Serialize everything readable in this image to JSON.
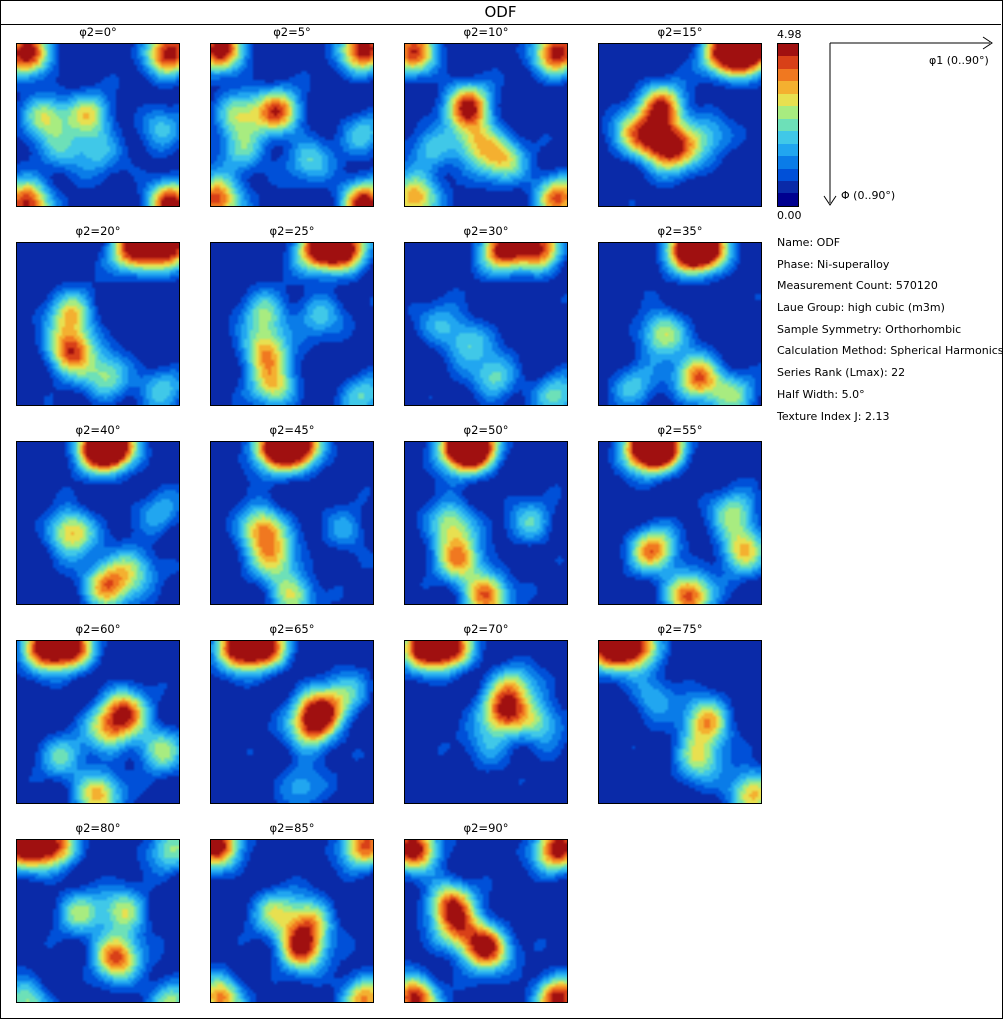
{
  "window": {
    "title": "ODF"
  },
  "colorbar": {
    "max_label": "4.98",
    "min_label": "0.00",
    "colors": [
      "#00008f",
      "#0a2aa8",
      "#0050d8",
      "#0a7ce8",
      "#21a6f0",
      "#40c8e8",
      "#6de0b8",
      "#a8ec80",
      "#e8e050",
      "#f4b030",
      "#f07820",
      "#d84018",
      "#a01010"
    ]
  },
  "axes": {
    "x_label": "φ1 (0..90°)",
    "y_label": "Φ (0..90°)"
  },
  "info": [
    {
      "key": "Name",
      "value": "ODF"
    },
    {
      "key": "Phase",
      "value": "Ni-superalloy"
    },
    {
      "key": "Measurement Count",
      "value": "570120"
    },
    {
      "key": "Laue Group",
      "value": "high cubic (m3m)"
    },
    {
      "key": "Sample Symmetry",
      "value": "Orthorhombic"
    },
    {
      "key": "Calculation Method",
      "value": "Spherical Harmonics"
    },
    {
      "key": "Series Rank (Lmax)",
      "value": "22"
    },
    {
      "key": "Half Width",
      "value": "5.0°"
    },
    {
      "key": "Texture Index J",
      "value": "2.13"
    }
  ],
  "info_lines": [
    "Name: ODF",
    "Phase: Ni-superalloy",
    "Measurement Count: 570120",
    "Laue Group: high cubic (m3m)",
    "Sample Symmetry: Orthorhombic",
    "Calculation Method: Spherical Harmonics",
    "Series Rank (Lmax): 22",
    "Half Width: 5.0°",
    "Texture Index J: 2.13"
  ],
  "chart_data": {
    "type": "heatmap",
    "title": "ODF",
    "xlabel": "φ1 (0..90°)",
    "ylabel": "Φ (0..90°)",
    "xlim": [
      0,
      90
    ],
    "ylim": [
      0,
      90
    ],
    "value_range": [
      0.0,
      4.98
    ],
    "sections": [
      {
        "label": "φ2=0°",
        "phi2": 0,
        "peaks": [
          [
            5,
            5,
            4.6
          ],
          [
            85,
            5,
            4.6
          ],
          [
            5,
            88,
            4.6
          ],
          [
            85,
            88,
            4.6
          ],
          [
            15,
            40,
            2.6
          ],
          [
            40,
            40,
            2.6
          ],
          [
            25,
            60,
            1.6
          ],
          [
            45,
            60,
            1.6
          ],
          [
            80,
            45,
            1.6
          ]
        ]
      },
      {
        "label": "φ2=5°",
        "phi2": 5,
        "peaks": [
          [
            5,
            3,
            4.6
          ],
          [
            85,
            3,
            4.6
          ],
          [
            3,
            86,
            4.3
          ],
          [
            85,
            88,
            4.6
          ],
          [
            37,
            38,
            3.8
          ],
          [
            15,
            38,
            2.4
          ],
          [
            18,
            60,
            2.0
          ],
          [
            55,
            65,
            1.8
          ],
          [
            85,
            50,
            1.6
          ]
        ]
      },
      {
        "label": "φ2=10°",
        "phi2": 10,
        "peaks": [
          [
            5,
            5,
            4.0
          ],
          [
            85,
            5,
            4.6
          ],
          [
            5,
            85,
            3.6
          ],
          [
            85,
            85,
            3.8
          ],
          [
            35,
            35,
            4.2
          ],
          [
            40,
            55,
            2.8
          ],
          [
            55,
            65,
            2.6
          ],
          [
            15,
            60,
            1.7
          ]
        ]
      },
      {
        "label": "φ2=15°",
        "phi2": 15,
        "peaks": [
          [
            70,
            5,
            4.6
          ],
          [
            85,
            5,
            4.6
          ],
          [
            35,
            35,
            3.8
          ],
          [
            35,
            55,
            3.8
          ],
          [
            20,
            50,
            2.8
          ],
          [
            45,
            60,
            2.2
          ],
          [
            60,
            50,
            1.6
          ]
        ]
      },
      {
        "label": "φ2=20°",
        "phi2": 20,
        "peaks": [
          [
            65,
            3,
            4.6
          ],
          [
            85,
            3,
            4.6
          ],
          [
            30,
            40,
            2.8
          ],
          [
            30,
            60,
            4.2
          ],
          [
            50,
            75,
            2.4
          ],
          [
            80,
            80,
            1.8
          ]
        ]
      },
      {
        "label": "φ2=25°",
        "phi2": 25,
        "peaks": [
          [
            60,
            3,
            4.6
          ],
          [
            75,
            3,
            4.3
          ],
          [
            30,
            60,
            3.2
          ],
          [
            30,
            40,
            2.2
          ],
          [
            35,
            80,
            2.8
          ],
          [
            60,
            40,
            1.8
          ],
          [
            85,
            85,
            1.8
          ]
        ]
      },
      {
        "label": "φ2=30°",
        "phi2": 30,
        "peaks": [
          [
            55,
            3,
            4.6
          ],
          [
            75,
            3,
            4.0
          ],
          [
            35,
            55,
            1.8
          ],
          [
            50,
            75,
            2.2
          ],
          [
            85,
            85,
            2.0
          ],
          [
            20,
            45,
            1.4
          ]
        ]
      },
      {
        "label": "φ2=35°",
        "phi2": 35,
        "peaks": [
          [
            50,
            3,
            4.6
          ],
          [
            60,
            3,
            4.3
          ],
          [
            35,
            50,
            2.8
          ],
          [
            55,
            75,
            4.0
          ],
          [
            75,
            85,
            2.0
          ],
          [
            20,
            80,
            1.6
          ]
        ]
      },
      {
        "label": "φ2=40°",
        "phi2": 40,
        "peaks": [
          [
            45,
            3,
            4.6
          ],
          [
            55,
            3,
            4.3
          ],
          [
            30,
            50,
            3.4
          ],
          [
            50,
            80,
            3.8
          ],
          [
            65,
            70,
            2.2
          ],
          [
            80,
            40,
            1.4
          ]
        ]
      },
      {
        "label": "φ2=45°",
        "phi2": 45,
        "peaks": [
          [
            35,
            3,
            4.6
          ],
          [
            50,
            3,
            4.3
          ],
          [
            28,
            48,
            3.6
          ],
          [
            35,
            65,
            2.6
          ],
          [
            45,
            85,
            2.6
          ],
          [
            75,
            50,
            1.4
          ]
        ]
      },
      {
        "label": "φ2=50°",
        "phi2": 50,
        "peaks": [
          [
            30,
            3,
            4.6
          ],
          [
            40,
            3,
            4.3
          ],
          [
            25,
            45,
            2.8
          ],
          [
            30,
            65,
            3.2
          ],
          [
            45,
            85,
            3.8
          ],
          [
            70,
            45,
            1.8
          ]
        ]
      },
      {
        "label": "φ2=55°",
        "phi2": 55,
        "peaks": [
          [
            25,
            3,
            4.6
          ],
          [
            35,
            3,
            4.3
          ],
          [
            30,
            60,
            3.6
          ],
          [
            75,
            40,
            2.4
          ],
          [
            80,
            60,
            3.0
          ],
          [
            50,
            85,
            4.0
          ]
        ]
      },
      {
        "label": "φ2=60°",
        "phi2": 60,
        "peaks": [
          [
            15,
            3,
            4.6
          ],
          [
            30,
            3,
            4.3
          ],
          [
            60,
            40,
            3.8
          ],
          [
            50,
            50,
            2.4
          ],
          [
            80,
            60,
            2.4
          ],
          [
            25,
            65,
            1.8
          ],
          [
            45,
            85,
            3.2
          ]
        ]
      },
      {
        "label": "φ2=65°",
        "phi2": 65,
        "peaks": [
          [
            15,
            3,
            4.6
          ],
          [
            30,
            3,
            4.3
          ],
          [
            60,
            40,
            4.2
          ],
          [
            55,
            50,
            2.4
          ],
          [
            75,
            30,
            1.8
          ],
          [
            50,
            80,
            1.4
          ]
        ]
      },
      {
        "label": "φ2=70°",
        "phi2": 70,
        "peaks": [
          [
            10,
            3,
            4.6
          ],
          [
            25,
            3,
            4.3
          ],
          [
            55,
            40,
            3.8
          ],
          [
            60,
            25,
            2.4
          ],
          [
            75,
            45,
            2.2
          ],
          [
            45,
            60,
            1.4
          ]
        ]
      },
      {
        "label": "φ2=75°",
        "phi2": 75,
        "peaks": [
          [
            5,
            3,
            4.6
          ],
          [
            20,
            3,
            4.0
          ],
          [
            60,
            45,
            3.4
          ],
          [
            55,
            65,
            2.6
          ],
          [
            85,
            85,
            3.4
          ],
          [
            30,
            30,
            1.6
          ]
        ]
      },
      {
        "label": "φ2=80°",
        "phi2": 80,
        "peaks": [
          [
            3,
            3,
            4.6
          ],
          [
            20,
            3,
            4.0
          ],
          [
            55,
            65,
            4.0
          ],
          [
            60,
            40,
            2.6
          ],
          [
            35,
            40,
            2.2
          ],
          [
            85,
            5,
            2.2
          ],
          [
            5,
            90,
            2.6
          ],
          [
            85,
            90,
            2.6
          ]
        ]
      },
      {
        "label": "φ2=85°",
        "phi2": 85,
        "peaks": [
          [
            3,
            3,
            4.6
          ],
          [
            85,
            3,
            3.8
          ],
          [
            50,
            60,
            4.2
          ],
          [
            55,
            45,
            2.8
          ],
          [
            35,
            40,
            2.2
          ],
          [
            5,
            88,
            3.8
          ],
          [
            85,
            88,
            3.6
          ]
        ]
      },
      {
        "label": "φ2=90°",
        "phi2": 90,
        "peaks": [
          [
            5,
            5,
            4.6
          ],
          [
            85,
            5,
            4.6
          ],
          [
            45,
            60,
            4.6
          ],
          [
            25,
            35,
            3.6
          ],
          [
            30,
            50,
            2.8
          ],
          [
            5,
            88,
            4.6
          ],
          [
            85,
            88,
            4.6
          ]
        ]
      }
    ]
  }
}
